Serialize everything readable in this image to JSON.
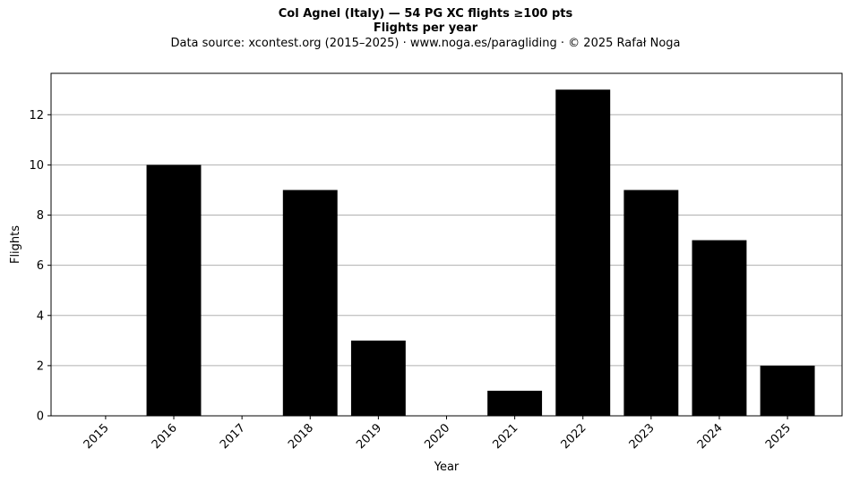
{
  "chart_data": {
    "type": "bar",
    "title": "Col Agnel (Italy)  —  54 PG XC flights ≥100 pts",
    "subtitle": "Flights per year",
    "source_note": "Data source: xcontest.org (2015–2025)  ·  www.noga.es/paragliding  ·  © 2025 Rafał Noga",
    "xlabel": "Year",
    "ylabel": "Flights",
    "categories": [
      "2015",
      "2016",
      "2017",
      "2018",
      "2019",
      "2020",
      "2021",
      "2022",
      "2023",
      "2024",
      "2025"
    ],
    "values": [
      0,
      10,
      0,
      9,
      3,
      0,
      1,
      13,
      9,
      7,
      2
    ],
    "ylim": [
      0,
      13.65
    ],
    "yticks": [
      0,
      2,
      4,
      6,
      8,
      10,
      12
    ],
    "grid": "horizontal",
    "bar_color": "#000000",
    "grid_color": "#b0b0b0"
  }
}
